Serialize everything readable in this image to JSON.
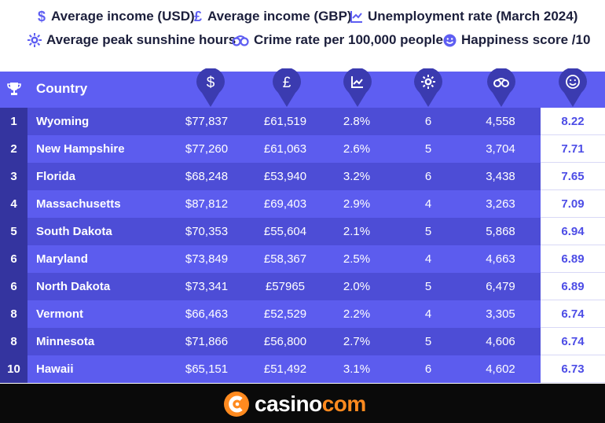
{
  "legend": {
    "usd": "Average income (USD)",
    "gbp": "Average income (GBP)",
    "unemployment": "Unemployment rate (March 2024)",
    "sunshine": "Average peak sunshine hours",
    "crime": "Crime rate per 100,000 people",
    "happiness": "Happiness score /10"
  },
  "header": {
    "country": "Country"
  },
  "icons": {
    "rank": "trophy-icon",
    "usd": "dollar-icon",
    "gbp": "pound-icon",
    "unemployment": "chart-icon",
    "sunshine": "sun-icon",
    "crime": "handcuffs-icon",
    "happiness": "smiley-icon"
  },
  "colors": {
    "header_bg": "#5e5ef2",
    "row_dark": "#4d4dd6",
    "row_light": "#5c5cee",
    "rank_bg": "#34349f",
    "pin": "#3b3bb0",
    "happiness_text": "#4d4de6",
    "brand_orange": "#ff8a1f"
  },
  "chart_data": {
    "type": "table",
    "columns": [
      "Country",
      "Average income (USD)",
      "Average income (GBP)",
      "Unemployment rate (March 2024)",
      "Average peak sunshine hours",
      "Crime rate per 100,000 people",
      "Happiness score /10"
    ],
    "rows": [
      {
        "rank": "1",
        "country": "Wyoming",
        "usd": "$77,837",
        "gbp": "£61,519",
        "unemployment": "2.8%",
        "sunshine": "6",
        "crime": "4,558",
        "happiness": "8.22"
      },
      {
        "rank": "2",
        "country": "New Hampshire",
        "usd": "$77,260",
        "gbp": "£61,063",
        "unemployment": "2.6%",
        "sunshine": "5",
        "crime": "3,704",
        "happiness": "7.71"
      },
      {
        "rank": "3",
        "country": "Florida",
        "usd": "$68,248",
        "gbp": "£53,940",
        "unemployment": "3.2%",
        "sunshine": "6",
        "crime": "3,438",
        "happiness": "7.65"
      },
      {
        "rank": "4",
        "country": "Massachusetts",
        "usd": "$87,812",
        "gbp": "£69,403",
        "unemployment": "2.9%",
        "sunshine": "4",
        "crime": "3,263",
        "happiness": "7.09"
      },
      {
        "rank": "5",
        "country": "South Dakota",
        "usd": "$70,353",
        "gbp": "£55,604",
        "unemployment": "2.1%",
        "sunshine": "5",
        "crime": "5,868",
        "happiness": "6.94"
      },
      {
        "rank": "6",
        "country": "Maryland",
        "usd": "$73,849",
        "gbp": "£58,367",
        "unemployment": "2.5%",
        "sunshine": "4",
        "crime": "4,663",
        "happiness": "6.89"
      },
      {
        "rank": "6",
        "country": "North Dakota",
        "usd": "$73,341",
        "gbp": "£57965",
        "unemployment": "2.0%",
        "sunshine": "5",
        "crime": "6,479",
        "happiness": "6.89"
      },
      {
        "rank": "8",
        "country": "Vermont",
        "usd": "$66,463",
        "gbp": "£52,529",
        "unemployment": "2.2%",
        "sunshine": "4",
        "crime": "3,305",
        "happiness": "6.74"
      },
      {
        "rank": "8",
        "country": "Minnesota",
        "usd": "$71,866",
        "gbp": "£56,800",
        "unemployment": "2.7%",
        "sunshine": "5",
        "crime": "4,606",
        "happiness": "6.74"
      },
      {
        "rank": "10",
        "country": "Hawaii",
        "usd": "$65,151",
        "gbp": "£51,492",
        "unemployment": "3.1%",
        "sunshine": "6",
        "crime": "4,602",
        "happiness": "6.73"
      }
    ]
  },
  "footer": {
    "brand_main": "casino",
    "brand_accent": "com"
  }
}
